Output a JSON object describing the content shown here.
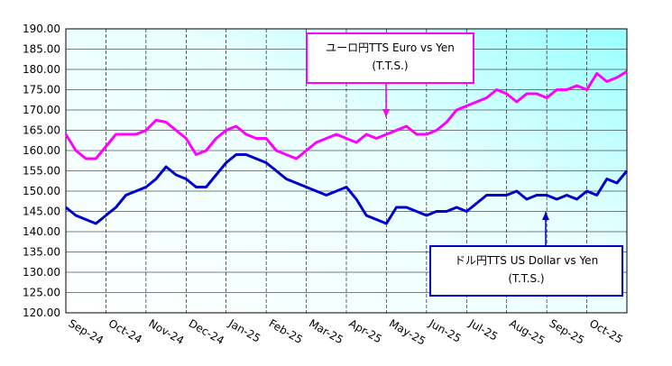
{
  "chart_data": {
    "type": "line",
    "categories": [
      "Sep-24",
      null,
      null,
      null,
      "Oct-24",
      null,
      null,
      null,
      "Nov-24",
      null,
      null,
      null,
      "Dec-24",
      null,
      null,
      null,
      "Jan-25",
      null,
      null,
      null,
      "Feb-25",
      null,
      null,
      null,
      "Mar-25",
      null,
      null,
      null,
      "Apr-25",
      null,
      null,
      null,
      "May-25",
      null,
      null,
      null,
      "Jun-25",
      null,
      null,
      null,
      "Jul-25",
      null,
      null,
      null,
      "Aug-25",
      null,
      null,
      null,
      "Sep-25",
      null,
      null,
      null,
      "Oct-25",
      null,
      null,
      null,
      null
    ],
    "series": [
      {
        "name": "ユーロ円TTS Euro vs Yen",
        "note": "(T.T.S.)",
        "color": "#ff00ff",
        "values": [
          164,
          160,
          158,
          158,
          161,
          164,
          164,
          164,
          165,
          167.5,
          167,
          165,
          163,
          159,
          160,
          163,
          165,
          166,
          164,
          163,
          163,
          160,
          159,
          158,
          160,
          162,
          163,
          164,
          163,
          162,
          164,
          163,
          164,
          165,
          166,
          164,
          164,
          165,
          167,
          170,
          171,
          172,
          173,
          175,
          174,
          172,
          174,
          174,
          173,
          175,
          175,
          176,
          175,
          179,
          177,
          178,
          179.5
        ]
      },
      {
        "name": "ドル円TTS  US Dollar vs Yen",
        "note": "(T.T.S.)",
        "color": "#0000cc",
        "values": [
          146,
          144,
          143,
          142,
          144,
          146,
          149,
          150,
          151,
          153,
          156,
          154,
          153,
          151,
          151,
          154,
          157,
          159,
          159,
          158,
          157,
          155,
          153,
          152,
          151,
          150,
          149,
          150,
          151,
          148,
          144,
          143,
          142,
          146,
          146,
          145,
          144,
          145,
          145,
          146,
          145,
          147,
          149,
          149,
          149,
          150,
          148,
          149,
          149,
          148,
          149,
          148,
          150,
          149,
          153,
          152,
          155
        ]
      }
    ],
    "ylim": [
      120,
      190
    ],
    "yticks": [
      {
        "value": 120,
        "label": "120.00"
      },
      {
        "value": 125,
        "label": "125.00"
      },
      {
        "value": 130,
        "label": "130.00"
      },
      {
        "value": 135,
        "label": "135.00"
      },
      {
        "value": 140,
        "label": "140.00"
      },
      {
        "value": 145,
        "label": "145.00"
      },
      {
        "value": 150,
        "label": "150.00"
      },
      {
        "value": 155,
        "label": "155.00"
      },
      {
        "value": 160,
        "label": "160.00"
      },
      {
        "value": 165,
        "label": "165.00"
      },
      {
        "value": 170,
        "label": "170.00"
      },
      {
        "value": 175,
        "label": "175.00"
      },
      {
        "value": 180,
        "label": "180.00"
      },
      {
        "value": 185,
        "label": "185.00"
      },
      {
        "value": 190,
        "label": "190.00"
      }
    ],
    "grid": true
  }
}
